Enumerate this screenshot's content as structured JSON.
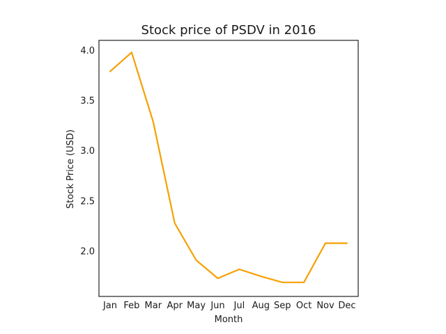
{
  "chart_data": {
    "type": "line",
    "title": "Stock price of PSDV in 2016",
    "xlabel": "Month",
    "ylabel": "Stock Price (USD)",
    "categories": [
      "Jan",
      "Feb",
      "Mar",
      "Apr",
      "May",
      "Jun",
      "Jul",
      "Aug",
      "Sep",
      "Oct",
      "Nov",
      "Dec"
    ],
    "series": [
      {
        "values": [
          3.79,
          3.98,
          3.29,
          2.28,
          1.91,
          1.73,
          1.82,
          1.75,
          1.69,
          1.69,
          2.08,
          2.08
        ],
        "color": "#f5a000"
      }
    ],
    "yticks": [
      "2.0",
      "2.5",
      "3.0",
      "3.5",
      "4.0"
    ],
    "ylim": [
      1.55,
      4.1
    ],
    "grid": false,
    "legend": "none"
  }
}
